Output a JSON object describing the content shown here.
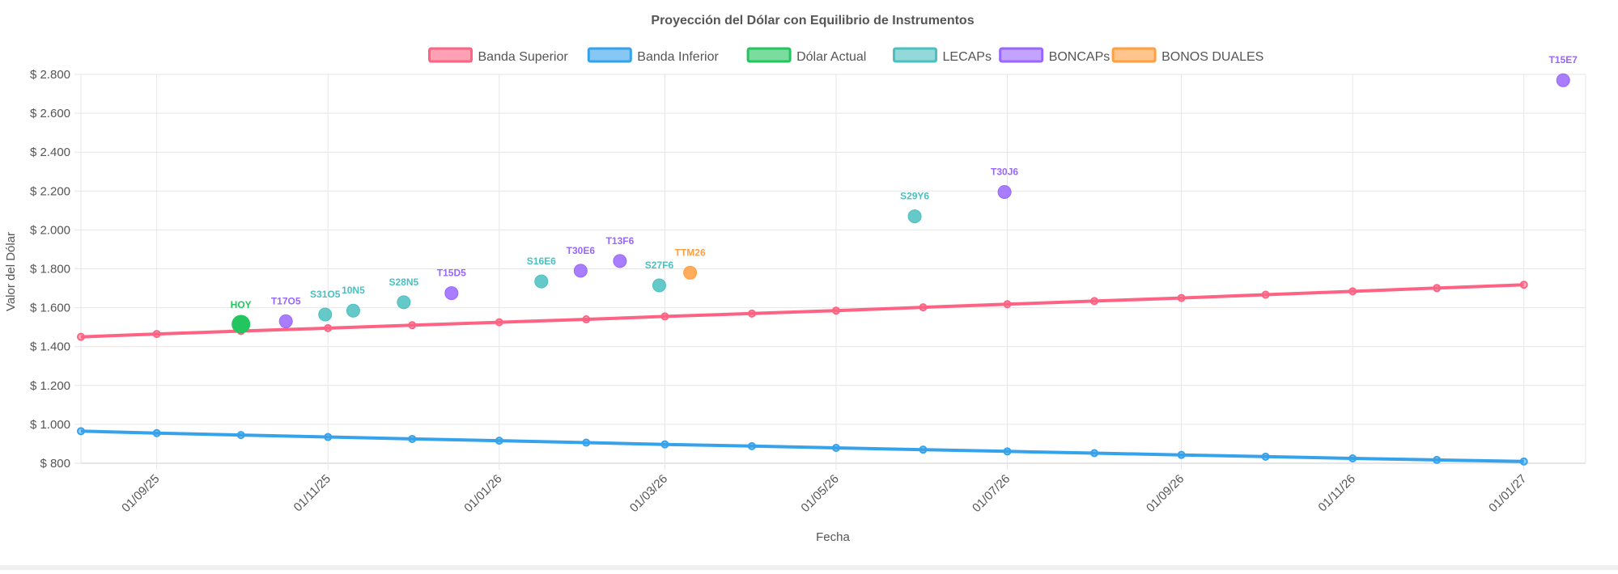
{
  "chart_data": {
    "type": "line",
    "title": "Proyección del Dólar con Equilibrio de Instrumentos",
    "xlabel": "Fecha",
    "ylabel": "Valor del Dólar",
    "x_range": [
      "2025-08-05",
      "2027-01-23"
    ],
    "ylim": [
      800,
      2800
    ],
    "y_tick_step": 200,
    "y_tick_labels": [
      "$ 800",
      "$ 1.000",
      "$ 1.200",
      "$ 1.400",
      "$ 1.600",
      "$ 1.800",
      "$ 2.000",
      "$ 2.200",
      "$ 2.400",
      "$ 2.600",
      "$ 2.800"
    ],
    "x_ticks": [
      {
        "date": "2025-09-01",
        "label": "01/09/25"
      },
      {
        "date": "2025-11-01",
        "label": "01/11/25"
      },
      {
        "date": "2026-01-01",
        "label": "01/01/26"
      },
      {
        "date": "2026-03-01",
        "label": "01/03/26"
      },
      {
        "date": "2026-05-01",
        "label": "01/05/26"
      },
      {
        "date": "2026-07-01",
        "label": "01/07/26"
      },
      {
        "date": "2026-09-01",
        "label": "01/09/26"
      },
      {
        "date": "2026-11-01",
        "label": "01/11/26"
      },
      {
        "date": "2027-01-01",
        "label": "01/01/27"
      }
    ],
    "grid": true,
    "legend_position": "top-center",
    "series": [
      {
        "name": "Banda Superior",
        "kind": "line",
        "color": "#ff6384",
        "points": [
          {
            "x": "2025-08-05",
            "y": 1450
          },
          {
            "x": "2025-09-01",
            "y": 1465
          },
          {
            "x": "2025-10-01",
            "y": 1480
          },
          {
            "x": "2025-11-01",
            "y": 1495
          },
          {
            "x": "2025-12-01",
            "y": 1510
          },
          {
            "x": "2026-01-01",
            "y": 1525
          },
          {
            "x": "2026-02-01",
            "y": 1540
          },
          {
            "x": "2026-03-01",
            "y": 1555
          },
          {
            "x": "2026-04-01",
            "y": 1570
          },
          {
            "x": "2026-05-01",
            "y": 1585
          },
          {
            "x": "2026-06-01",
            "y": 1602
          },
          {
            "x": "2026-07-01",
            "y": 1618
          },
          {
            "x": "2026-08-01",
            "y": 1634
          },
          {
            "x": "2026-09-01",
            "y": 1650
          },
          {
            "x": "2026-10-01",
            "y": 1667
          },
          {
            "x": "2026-11-01",
            "y": 1684
          },
          {
            "x": "2026-12-01",
            "y": 1701
          },
          {
            "x": "2027-01-01",
            "y": 1718
          }
        ]
      },
      {
        "name": "Banda Inferior",
        "kind": "line",
        "color": "#36a2eb",
        "points": [
          {
            "x": "2025-08-05",
            "y": 965
          },
          {
            "x": "2025-09-01",
            "y": 955
          },
          {
            "x": "2025-10-01",
            "y": 945
          },
          {
            "x": "2025-11-01",
            "y": 935
          },
          {
            "x": "2025-12-01",
            "y": 925
          },
          {
            "x": "2026-01-01",
            "y": 916
          },
          {
            "x": "2026-02-01",
            "y": 906
          },
          {
            "x": "2026-03-01",
            "y": 897
          },
          {
            "x": "2026-04-01",
            "y": 888
          },
          {
            "x": "2026-05-01",
            "y": 879
          },
          {
            "x": "2026-06-01",
            "y": 870
          },
          {
            "x": "2026-07-01",
            "y": 861
          },
          {
            "x": "2026-08-01",
            "y": 852
          },
          {
            "x": "2026-09-01",
            "y": 843
          },
          {
            "x": "2026-10-01",
            "y": 834
          },
          {
            "x": "2026-11-01",
            "y": 825
          },
          {
            "x": "2026-12-01",
            "y": 817
          },
          {
            "x": "2027-01-01",
            "y": 809
          }
        ]
      },
      {
        "name": "Dólar Actual",
        "kind": "scatter",
        "color": "#22c55e",
        "points": [
          {
            "x": "2025-10-01",
            "y": 1515,
            "label": "HOY"
          }
        ]
      },
      {
        "name": "LECAPs",
        "kind": "scatter",
        "color": "#4bc0c0",
        "points": [
          {
            "x": "2025-10-31",
            "y": 1565,
            "label": "S31O5"
          },
          {
            "x": "2025-11-10",
            "y": 1585,
            "label": "10N5"
          },
          {
            "x": "2025-11-28",
            "y": 1628,
            "label": "S28N5"
          },
          {
            "x": "2026-01-16",
            "y": 1735,
            "label": "S16E6"
          },
          {
            "x": "2026-02-27",
            "y": 1715,
            "label": "S27F6"
          },
          {
            "x": "2026-05-29",
            "y": 2070,
            "label": "S29Y6"
          }
        ]
      },
      {
        "name": "BONCAPs",
        "kind": "scatter",
        "color": "#9966ff",
        "points": [
          {
            "x": "2025-10-17",
            "y": 1530,
            "label": "T17O5"
          },
          {
            "x": "2025-12-15",
            "y": 1675,
            "label": "T15D5"
          },
          {
            "x": "2026-01-30",
            "y": 1790,
            "label": "T30E6"
          },
          {
            "x": "2026-02-13",
            "y": 1840,
            "label": "T13F6"
          },
          {
            "x": "2026-06-30",
            "y": 2195,
            "label": "T30J6"
          },
          {
            "x": "2027-01-15",
            "y": 2770,
            "label": "T15E7"
          }
        ]
      },
      {
        "name": "BONOS DUALES",
        "kind": "scatter",
        "color": "#ff9f40",
        "points": [
          {
            "x": "2026-03-10",
            "y": 1780,
            "label": "TTM26"
          }
        ]
      }
    ]
  }
}
